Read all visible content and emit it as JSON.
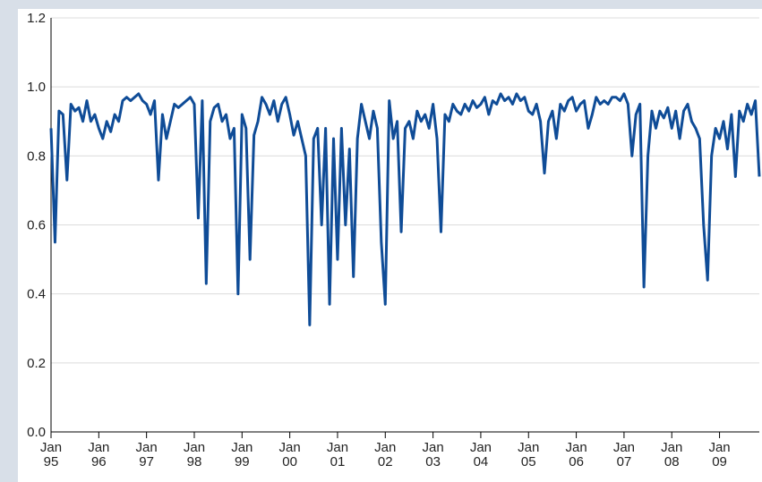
{
  "chart_data": {
    "type": "line",
    "x": [
      "1995-01",
      "1995-02",
      "1995-03",
      "1995-04",
      "1995-05",
      "1995-06",
      "1995-07",
      "1995-08",
      "1995-09",
      "1995-10",
      "1995-11",
      "1995-12",
      "1996-01",
      "1996-02",
      "1996-03",
      "1996-04",
      "1996-05",
      "1996-06",
      "1996-07",
      "1996-08",
      "1996-09",
      "1996-10",
      "1996-11",
      "1996-12",
      "1997-01",
      "1997-02",
      "1997-03",
      "1997-04",
      "1997-05",
      "1997-06",
      "1997-07",
      "1997-08",
      "1997-09",
      "1997-10",
      "1997-11",
      "1997-12",
      "1998-01",
      "1998-02",
      "1998-03",
      "1998-04",
      "1998-05",
      "1998-06",
      "1998-07",
      "1998-08",
      "1998-09",
      "1998-10",
      "1998-11",
      "1998-12",
      "1999-01",
      "1999-02",
      "1999-03",
      "1999-04",
      "1999-05",
      "1999-06",
      "1999-07",
      "1999-08",
      "1999-09",
      "1999-10",
      "1999-11",
      "1999-12",
      "2000-01",
      "2000-02",
      "2000-03",
      "2000-04",
      "2000-05",
      "2000-06",
      "2000-07",
      "2000-08",
      "2000-09",
      "2000-10",
      "2000-11",
      "2000-12",
      "2001-01",
      "2001-02",
      "2001-03",
      "2001-04",
      "2001-05",
      "2001-06",
      "2001-07",
      "2001-08",
      "2001-09",
      "2001-10",
      "2001-11",
      "2001-12",
      "2002-01",
      "2002-02",
      "2002-03",
      "2002-04",
      "2002-05",
      "2002-06",
      "2002-07",
      "2002-08",
      "2002-09",
      "2002-10",
      "2002-11",
      "2002-12",
      "2003-01",
      "2003-02",
      "2003-03",
      "2003-04",
      "2003-05",
      "2003-06",
      "2003-07",
      "2003-08",
      "2003-09",
      "2003-10",
      "2003-11",
      "2003-12",
      "2004-01",
      "2004-02",
      "2004-03",
      "2004-04",
      "2004-05",
      "2004-06",
      "2004-07",
      "2004-08",
      "2004-09",
      "2004-10",
      "2004-11",
      "2004-12",
      "2005-01",
      "2005-02",
      "2005-03",
      "2005-04",
      "2005-05",
      "2005-06",
      "2005-07",
      "2005-08",
      "2005-09",
      "2005-10",
      "2005-11",
      "2005-12",
      "2006-01",
      "2006-02",
      "2006-03",
      "2006-04",
      "2006-05",
      "2006-06",
      "2006-07",
      "2006-08",
      "2006-09",
      "2006-10",
      "2006-11",
      "2006-12",
      "2007-01",
      "2007-02",
      "2007-03",
      "2007-04",
      "2007-05",
      "2007-06",
      "2007-07",
      "2007-08",
      "2007-09",
      "2007-10",
      "2007-11",
      "2007-12",
      "2008-01",
      "2008-02",
      "2008-03",
      "2008-04",
      "2008-05",
      "2008-06",
      "2008-07",
      "2008-08",
      "2008-09",
      "2008-10",
      "2008-11",
      "2008-12",
      "2009-01",
      "2009-02",
      "2009-03",
      "2009-04",
      "2009-05",
      "2009-06",
      "2009-07",
      "2009-08",
      "2009-09",
      "2009-10",
      "2009-11"
    ],
    "series": [
      {
        "color": "#0f4c97",
        "values": [
          0.88,
          0.55,
          0.93,
          0.92,
          0.73,
          0.95,
          0.93,
          0.94,
          0.9,
          0.96,
          0.9,
          0.92,
          0.88,
          0.85,
          0.9,
          0.87,
          0.92,
          0.9,
          0.96,
          0.97,
          0.96,
          0.97,
          0.98,
          0.96,
          0.95,
          0.92,
          0.96,
          0.73,
          0.92,
          0.85,
          0.9,
          0.95,
          0.94,
          0.95,
          0.96,
          0.97,
          0.95,
          0.62,
          0.96,
          0.43,
          0.9,
          0.94,
          0.95,
          0.9,
          0.92,
          0.85,
          0.88,
          0.4,
          0.92,
          0.88,
          0.5,
          0.86,
          0.9,
          0.97,
          0.95,
          0.92,
          0.96,
          0.9,
          0.95,
          0.97,
          0.92,
          0.86,
          0.9,
          0.85,
          0.8,
          0.31,
          0.85,
          0.88,
          0.6,
          0.88,
          0.37,
          0.85,
          0.5,
          0.88,
          0.6,
          0.82,
          0.45,
          0.85,
          0.95,
          0.9,
          0.85,
          0.93,
          0.88,
          0.55,
          0.37,
          0.96,
          0.85,
          0.9,
          0.58,
          0.88,
          0.9,
          0.85,
          0.93,
          0.9,
          0.92,
          0.88,
          0.95,
          0.85,
          0.58,
          0.92,
          0.9,
          0.95,
          0.93,
          0.92,
          0.95,
          0.93,
          0.96,
          0.94,
          0.95,
          0.97,
          0.92,
          0.96,
          0.95,
          0.98,
          0.96,
          0.97,
          0.95,
          0.98,
          0.96,
          0.97,
          0.93,
          0.92,
          0.95,
          0.9,
          0.75,
          0.9,
          0.93,
          0.85,
          0.95,
          0.93,
          0.96,
          0.97,
          0.93,
          0.95,
          0.96,
          0.88,
          0.92,
          0.97,
          0.95,
          0.96,
          0.95,
          0.97,
          0.97,
          0.96,
          0.98,
          0.95,
          0.8,
          0.92,
          0.95,
          0.42,
          0.8,
          0.93,
          0.88,
          0.93,
          0.91,
          0.94,
          0.88,
          0.93,
          0.85,
          0.93,
          0.95,
          0.9,
          0.88,
          0.85,
          0.6,
          0.44,
          0.8,
          0.88,
          0.85,
          0.9,
          0.82,
          0.92,
          0.74,
          0.93,
          0.9,
          0.95,
          0.92,
          0.96,
          0.74
        ]
      }
    ],
    "xlim": [
      "1995-01",
      "2009-11"
    ],
    "xticks": [
      {
        "value": "1995-01",
        "label": "Jan 95"
      },
      {
        "value": "1996-01",
        "label": "Jan 96"
      },
      {
        "value": "1997-01",
        "label": "Jan 97"
      },
      {
        "value": "1998-01",
        "label": "Jan 98"
      },
      {
        "value": "1999-01",
        "label": "Jan 99"
      },
      {
        "value": "2000-01",
        "label": "Jan 00"
      },
      {
        "value": "2001-01",
        "label": "Jan 01"
      },
      {
        "value": "2002-01",
        "label": "Jan 02"
      },
      {
        "value": "2003-01",
        "label": "Jan 03"
      },
      {
        "value": "2004-01",
        "label": "Jan 04"
      },
      {
        "value": "2005-01",
        "label": "Jan 05"
      },
      {
        "value": "2006-01",
        "label": "Jan 06"
      },
      {
        "value": "2007-01",
        "label": "Jan 07"
      },
      {
        "value": "2008-01",
        "label": "Jan 08"
      },
      {
        "value": "2009-01",
        "label": "Jan 09"
      }
    ],
    "ylim": [
      0,
      1.2
    ],
    "yticks": [
      {
        "value": 0,
        "label": "0.0"
      },
      0.2,
      0.4,
      0.6,
      0.8,
      {
        "value": 1,
        "label": "1.0"
      },
      1.2
    ],
    "grid": true
  }
}
